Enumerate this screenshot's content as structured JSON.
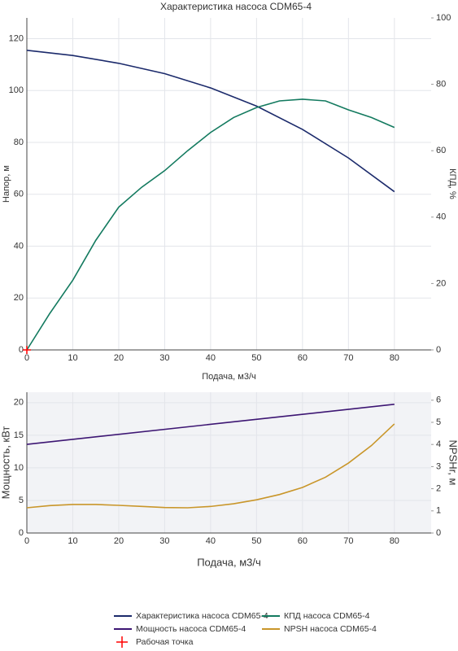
{
  "chart_data": [
    {
      "type": "line",
      "title": "Характеристика насоса CDM65-4",
      "x_label": "Подача, м3/ч",
      "y_label": "Напор, м",
      "y2_label": "КПД, %",
      "xlim": [
        0,
        88
      ],
      "xticks": [
        0,
        10,
        20,
        30,
        40,
        50,
        60,
        70,
        80
      ],
      "ylim": [
        0,
        128
      ],
      "yticks": [
        0,
        20,
        40,
        60,
        80,
        100,
        120
      ],
      "y2lim": [
        0,
        100
      ],
      "y2ticks": [
        0,
        20,
        40,
        60,
        80,
        100
      ],
      "grid": true,
      "background": "#ffffff",
      "series": [
        {
          "name": "Характеристика насоса CDM65-4",
          "color": "#1b2a6b",
          "x": [
            0,
            10,
            20,
            30,
            40,
            50,
            60,
            70,
            80
          ],
          "values": [
            115.5,
            113.5,
            110.5,
            106.5,
            101,
            94,
            85,
            74,
            61
          ]
        },
        {
          "name": "КПД насоса CDM65-4",
          "color": "#137a5f",
          "axis": "y2",
          "x": [
            0,
            5,
            10,
            15,
            20,
            25,
            30,
            35,
            40,
            45,
            50,
            55,
            60,
            65,
            70,
            75,
            80
          ],
          "values": [
            0,
            11,
            21,
            33,
            43,
            49,
            54,
            60,
            65.5,
            70,
            73,
            75,
            75.5,
            75,
            72.3,
            70,
            67
          ]
        },
        {
          "name": "Рабочая точка",
          "color": "#ff0000",
          "marker": "cross",
          "x": [
            0
          ],
          "values": [
            0
          ]
        }
      ]
    },
    {
      "type": "line",
      "x_label": "Подача, м3/ч",
      "y_label": "Мощность, кВт",
      "y2_label": "NPSHr, м",
      "xlim": [
        0,
        88
      ],
      "xticks": [
        0,
        10,
        20,
        30,
        40,
        50,
        60,
        70,
        80
      ],
      "ylim": [
        0,
        21.6
      ],
      "yticks": [
        0,
        5,
        10,
        15,
        20
      ],
      "y2lim": [
        0,
        6.36
      ],
      "y2ticks": [
        0,
        1,
        2,
        3,
        4,
        5,
        6
      ],
      "grid": true,
      "background": "#f2f3f6",
      "series": [
        {
          "name": "Мощность насоса CDM65-4",
          "color": "#3d1673",
          "x": [
            0,
            80
          ],
          "values": [
            13.6,
            19.75
          ]
        },
        {
          "name": "NPSH насоса CDM65-4",
          "color": "#c9962a",
          "axis": "y2",
          "x": [
            0,
            5,
            10,
            15,
            20,
            25,
            30,
            35,
            40,
            45,
            50,
            55,
            60,
            65,
            70,
            75,
            80
          ],
          "values": [
            1.14,
            1.24,
            1.29,
            1.29,
            1.25,
            1.2,
            1.15,
            1.14,
            1.2,
            1.32,
            1.5,
            1.74,
            2.06,
            2.52,
            3.16,
            3.95,
            4.93
          ]
        }
      ]
    }
  ]
}
